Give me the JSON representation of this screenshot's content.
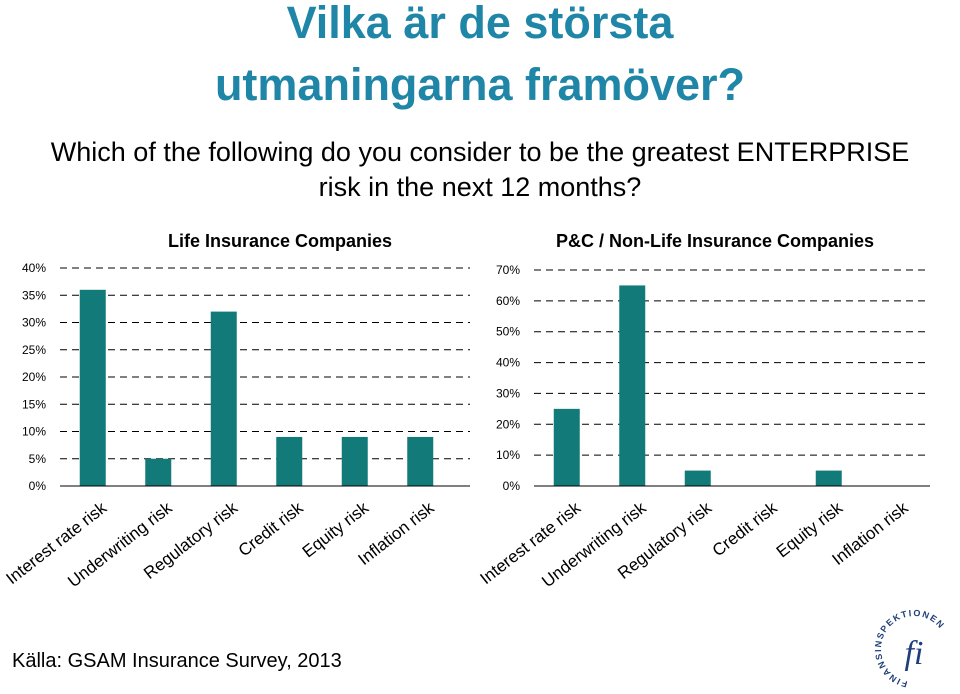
{
  "title_line1": "Vilka är de största",
  "title_line2": "utmaningarna framöver?",
  "subtitle_line1": "Which of the following do you consider to be the greatest ENTERPRISE",
  "subtitle_line2": "risk in the next 12 months?",
  "source": "Källa: GSAM Insurance Survey, 2013",
  "logo": {
    "text": "FINANSINSPEKTIONEN",
    "mark": "fi"
  },
  "colors": {
    "title": "#1f86a7",
    "bar": "#137a7a",
    "gridline": "#000000"
  },
  "chart_data": [
    {
      "type": "bar",
      "title": "Life Insurance Companies",
      "categories": [
        "Interest rate risk",
        "Underwriting risk",
        "Regulatory risk",
        "Credit risk",
        "Equity risk",
        "Inflation risk"
      ],
      "values": [
        36,
        5,
        32,
        9,
        9,
        9
      ],
      "ylim": [
        0,
        40
      ],
      "yticks": [
        "0%",
        "5%",
        "10%",
        "15%",
        "20%",
        "25%",
        "30%",
        "35%",
        "40%"
      ],
      "grid": "dashed horizontal"
    },
    {
      "type": "bar",
      "title": "P&C / Non-Life Insurance Companies",
      "categories": [
        "Interest rate risk",
        "Underwriting risk",
        "Regulatory risk",
        "Credit risk",
        "Equity risk",
        "Inflation risk"
      ],
      "values": [
        25,
        65,
        5,
        0,
        5,
        0
      ],
      "ylim": [
        0,
        70
      ],
      "yticks": [
        "0%",
        "10%",
        "20%",
        "30%",
        "40%",
        "50%",
        "60%",
        "70%"
      ],
      "grid": "dashed horizontal"
    }
  ]
}
